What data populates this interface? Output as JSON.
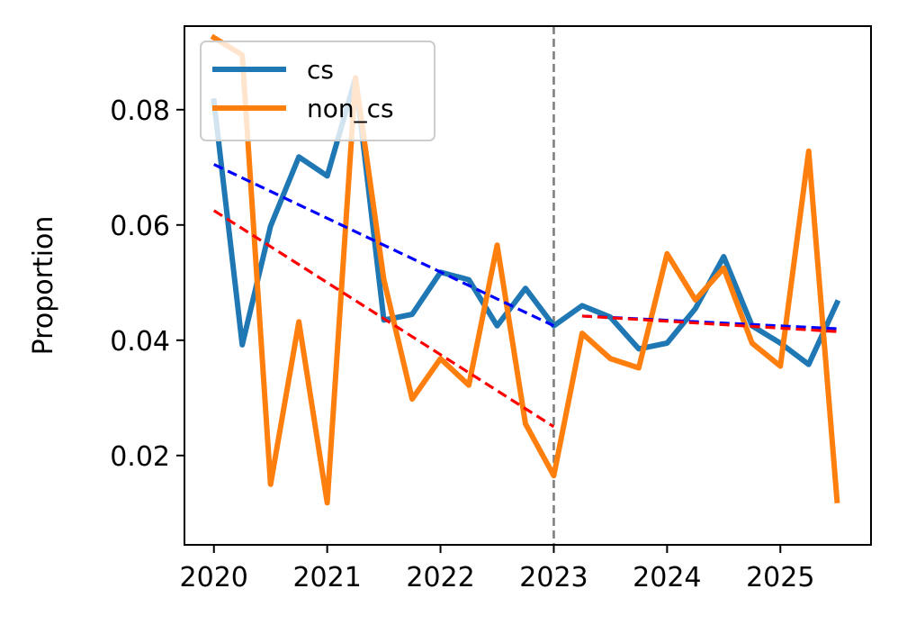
{
  "chart_data": {
    "type": "line",
    "xlabel": "",
    "ylabel": "Proportion",
    "xlim": [
      2019.74,
      2025.8
    ],
    "ylim": [
      0.0045,
      0.0945
    ],
    "xticks": [
      2020,
      2021,
      2022,
      2023,
      2024,
      2025
    ],
    "xtick_labels": [
      "2020",
      "2021",
      "2022",
      "2023",
      "2024",
      "2025"
    ],
    "yticks": [
      0.02,
      0.04,
      0.06,
      0.08
    ],
    "ytick_labels": [
      "0.02",
      "0.04",
      "0.06",
      "0.08"
    ],
    "legend_position": "top-left",
    "grid": false,
    "x": [
      2020.0,
      2020.25,
      2020.5,
      2020.75,
      2021.0,
      2021.25,
      2021.5,
      2021.75,
      2022.0,
      2022.25,
      2022.5,
      2022.75,
      2023.0,
      2023.25,
      2023.5,
      2023.75,
      2024.0,
      2024.25,
      2024.5,
      2024.75,
      2025.0,
      2025.25,
      2025.5
    ],
    "series": [
      {
        "name": "cs",
        "color": "#1f77b4",
        "values": [
          0.0815,
          0.0392,
          0.0598,
          0.0718,
          0.0685,
          0.0855,
          0.0435,
          0.0445,
          0.0518,
          0.0505,
          0.0425,
          0.049,
          0.0425,
          0.046,
          0.044,
          0.0385,
          0.0395,
          0.0455,
          0.0545,
          0.0425,
          0.0395,
          0.0358,
          0.0465
        ]
      },
      {
        "name": "non_cs",
        "color": "#ff7f0e",
        "values": [
          0.0925,
          0.0895,
          0.015,
          0.0432,
          0.0118,
          0.0855,
          0.0505,
          0.0298,
          0.0368,
          0.0322,
          0.0565,
          0.0255,
          0.0165,
          0.0412,
          0.0368,
          0.0352,
          0.055,
          0.047,
          0.0525,
          0.0395,
          0.0355,
          0.0728,
          0.0122
        ]
      }
    ],
    "trend_lines": [
      {
        "color": "#0000ff",
        "x": [
          2020.0,
          2023.0
        ],
        "values": [
          0.0705,
          0.0425
        ]
      },
      {
        "color": "#ff0000",
        "x": [
          2020.0,
          2023.0
        ],
        "values": [
          0.0625,
          0.025
        ]
      },
      {
        "color": "#0000ff",
        "x": [
          2023.25,
          2025.5
        ],
        "values": [
          0.0442,
          0.042
        ]
      },
      {
        "color": "#ff0000",
        "x": [
          2023.25,
          2025.5
        ],
        "values": [
          0.0442,
          0.0415
        ]
      }
    ],
    "vline": {
      "x": 2023.0,
      "color": "#808080"
    }
  }
}
